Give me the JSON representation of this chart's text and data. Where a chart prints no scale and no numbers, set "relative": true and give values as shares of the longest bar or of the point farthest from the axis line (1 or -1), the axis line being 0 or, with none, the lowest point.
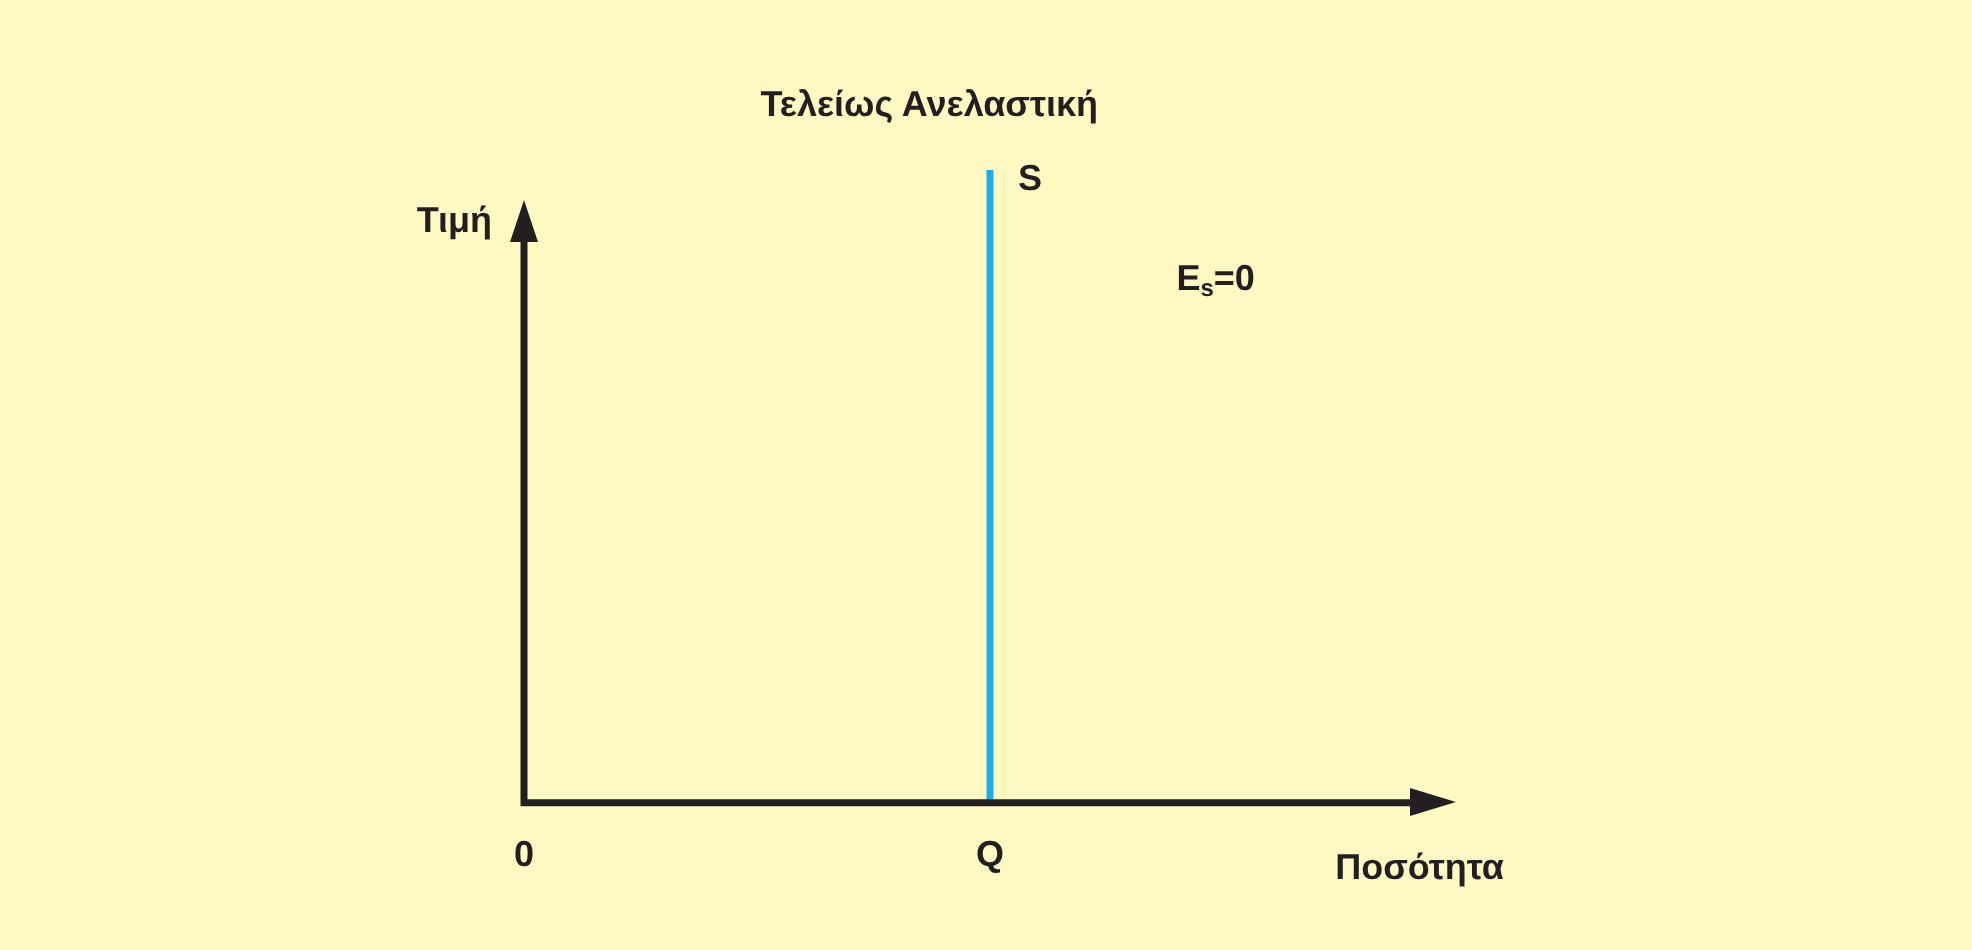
{
  "chart_data": {
    "type": "line",
    "title": "Τελείως Ανελαστική",
    "xlabel": "Ποσότητα",
    "ylabel": "Τιμή",
    "relative": true,
    "categories": [
      "0",
      "Q",
      null
    ],
    "series": [
      {
        "name": "S",
        "color": "#1aaee8",
        "x": [
          "Q",
          "Q"
        ],
        "values": [
          0,
          1
        ]
      }
    ],
    "annotations": [
      "E$_{s}$=0"
    ],
    "grid": false,
    "legend": false,
    "marker": "none",
    "line_style": "solid"
  }
}
